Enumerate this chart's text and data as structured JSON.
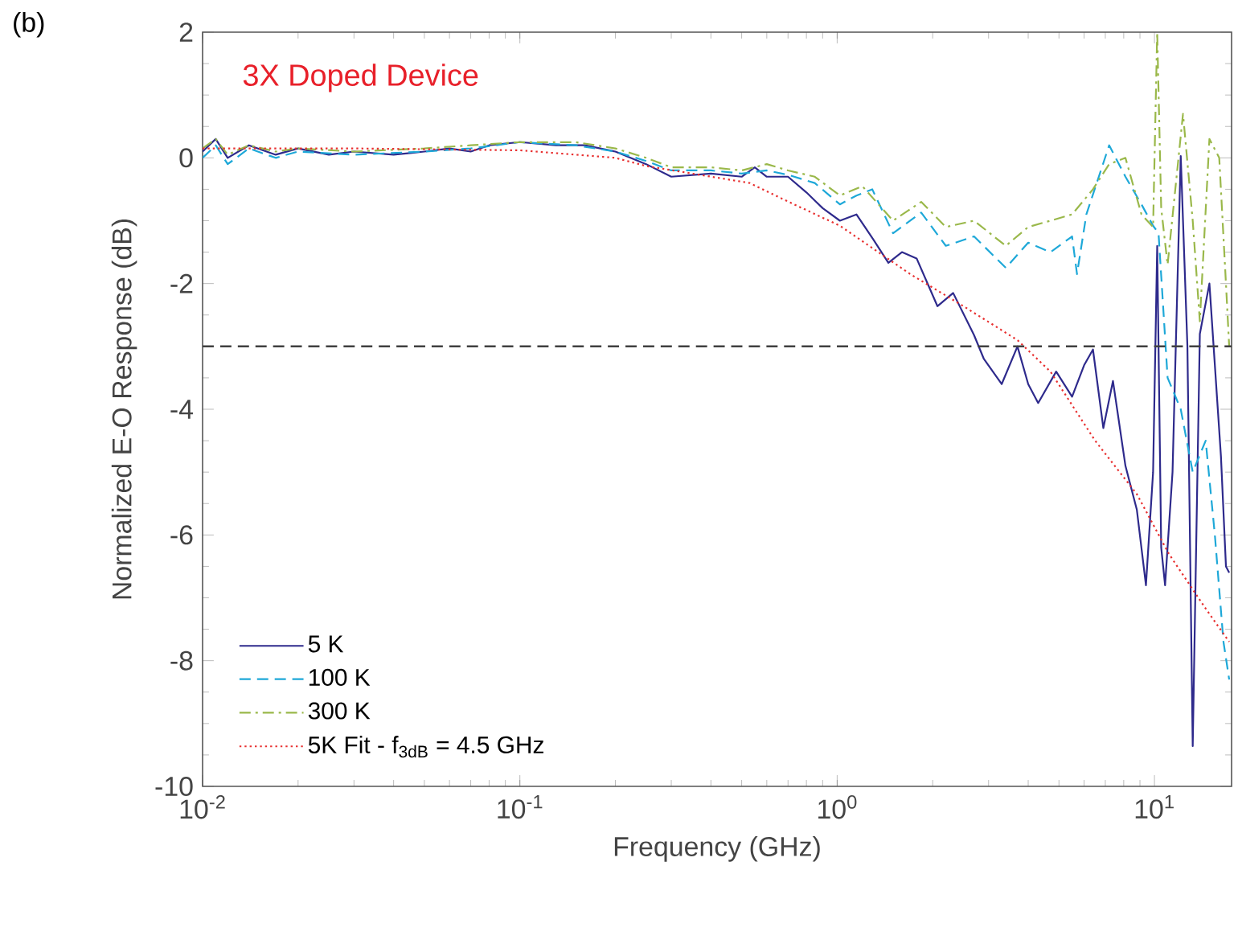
{
  "chart_data": {
    "type": "line",
    "xlabel": "Frequency (GHz)",
    "ylabel": "Normalized E-O Response (dB)",
    "annotations": [
      "(b)",
      "3X Doped Device"
    ],
    "log": "x",
    "xlim": [
      0.01,
      17.5
    ],
    "ylim": [
      -10,
      2
    ],
    "xticks": [
      {
        "value": 0.01,
        "label": "10$^{-2}$"
      },
      {
        "value": 0.1,
        "label": "10$^{-1}$"
      },
      {
        "value": 1,
        "label": "10$^{0}$"
      },
      {
        "value": 10,
        "label": "10$^{1}$"
      }
    ],
    "yticks": [
      -10,
      -8,
      -6,
      -4,
      -2,
      0,
      2
    ],
    "legend": "bottom left",
    "ref_lines": [
      {
        "axis": "y",
        "value": -3,
        "color": "#404040",
        "line_style": "dashed"
      }
    ],
    "series": [
      {
        "name": "5 K",
        "color": "#2e2a8c",
        "line_style": "solid",
        "x": [
          0.01,
          0.011,
          0.012,
          0.014,
          0.017,
          0.02,
          0.025,
          0.03,
          0.04,
          0.05,
          0.06,
          0.07,
          0.08,
          0.1,
          0.13,
          0.16,
          0.2,
          0.25,
          0.3,
          0.4,
          0.5,
          0.55,
          0.6,
          0.7,
          0.8,
          0.9,
          1.02,
          1.15,
          1.3,
          1.45,
          1.6,
          1.78,
          2.07,
          2.32,
          2.7,
          2.9,
          3.3,
          3.7,
          4.0,
          4.3,
          4.9,
          5.5,
          6.0,
          6.4,
          6.9,
          7.4,
          8.1,
          8.8,
          9.4,
          9.9,
          10.2,
          10.5,
          10.8,
          11.4,
          12.1,
          12.7,
          13.2,
          13.9,
          14.9,
          16.2,
          16.8,
          17.2
        ],
        "values": [
          0.1,
          0.3,
          0.0,
          0.2,
          0.05,
          0.15,
          0.05,
          0.1,
          0.05,
          0.1,
          0.15,
          0.1,
          0.2,
          0.25,
          0.2,
          0.2,
          0.1,
          -0.1,
          -0.3,
          -0.25,
          -0.3,
          -0.15,
          -0.3,
          -0.3,
          -0.55,
          -0.8,
          -1.0,
          -0.9,
          -1.3,
          -1.67,
          -1.5,
          -1.6,
          -2.36,
          -2.15,
          -2.82,
          -3.2,
          -3.6,
          -3.0,
          -3.6,
          -3.9,
          -3.4,
          -3.8,
          -3.3,
          -3.05,
          -4.3,
          -3.55,
          -4.9,
          -5.6,
          -6.8,
          -5.0,
          -1.4,
          -6.2,
          -6.8,
          -5.0,
          0.03,
          -3.0,
          -9.36,
          -2.8,
          -2.0,
          -4.75,
          -6.5,
          -6.6
        ]
      },
      {
        "name": "100 K",
        "color": "#1ea8d8",
        "line_style": "dashed",
        "x": [
          0.01,
          0.011,
          0.012,
          0.014,
          0.017,
          0.02,
          0.03,
          0.05,
          0.07,
          0.1,
          0.15,
          0.2,
          0.25,
          0.3,
          0.4,
          0.5,
          0.6,
          0.7,
          0.85,
          1.02,
          1.15,
          1.29,
          1.5,
          1.84,
          2.2,
          2.7,
          3.4,
          4.0,
          4.7,
          5.5,
          5.7,
          6.1,
          7.2,
          8.1,
          9.1,
          9.9,
          10.3,
          11.0,
          12.1,
          13.2,
          14.5,
          15.5,
          16.5,
          17.2
        ],
        "values": [
          0.0,
          0.2,
          -0.1,
          0.15,
          0.0,
          0.1,
          0.05,
          0.1,
          0.15,
          0.25,
          0.2,
          0.1,
          -0.05,
          -0.2,
          -0.2,
          -0.25,
          -0.2,
          -0.27,
          -0.4,
          -0.74,
          -0.6,
          -0.5,
          -1.2,
          -0.87,
          -1.4,
          -1.25,
          -1.75,
          -1.35,
          -1.5,
          -1.25,
          -1.85,
          -0.9,
          0.2,
          -0.3,
          -0.74,
          -1.08,
          -1.2,
          -3.5,
          -4.0,
          -5.0,
          -4.5,
          -6.0,
          -7.7,
          -8.3
        ]
      },
      {
        "name": "300 K",
        "color": "#9ab84a",
        "line_style": "dashdot",
        "x": [
          0.01,
          0.011,
          0.012,
          0.014,
          0.017,
          0.02,
          0.03,
          0.05,
          0.07,
          0.1,
          0.15,
          0.2,
          0.25,
          0.3,
          0.4,
          0.5,
          0.6,
          0.7,
          0.85,
          1.02,
          1.2,
          1.5,
          1.84,
          2.2,
          2.7,
          3.4,
          4.0,
          4.7,
          5.5,
          6.4,
          7.2,
          8.1,
          9.1,
          9.9,
          10.2,
          10.5,
          11.0,
          12.3,
          13.2,
          13.9,
          14.9,
          16.0,
          16.8,
          17.2
        ],
        "values": [
          0.15,
          0.3,
          0.05,
          0.2,
          0.1,
          0.15,
          0.1,
          0.15,
          0.2,
          0.25,
          0.25,
          0.15,
          0.0,
          -0.15,
          -0.15,
          -0.2,
          -0.1,
          -0.2,
          -0.3,
          -0.6,
          -0.45,
          -1.0,
          -0.7,
          -1.1,
          -1.0,
          -1.4,
          -1.1,
          -1.0,
          -0.9,
          -0.5,
          -0.1,
          0.0,
          -0.9,
          -1.1,
          2.0,
          -0.8,
          -1.7,
          0.7,
          -1.0,
          -2.6,
          0.3,
          0.0,
          -2.0,
          -3.0
        ]
      },
      {
        "name": "5K Fit - f$_{3dB}$ = 4.5 GHz",
        "color": "#e83030",
        "line_style": "dotted",
        "x": [
          0.01,
          0.03,
          0.1,
          0.2,
          0.25,
          0.53,
          0.67,
          1.02,
          1.7,
          2.5,
          3.7,
          4.7,
          6.5,
          8.8,
          11.1,
          14.4,
          17.2
        ],
        "values": [
          0.15,
          0.15,
          0.12,
          0.0,
          -0.13,
          -0.4,
          -0.65,
          -1.08,
          -1.85,
          -2.36,
          -2.9,
          -3.4,
          -4.5,
          -5.35,
          -6.3,
          -7.15,
          -7.7
        ]
      }
    ]
  }
}
